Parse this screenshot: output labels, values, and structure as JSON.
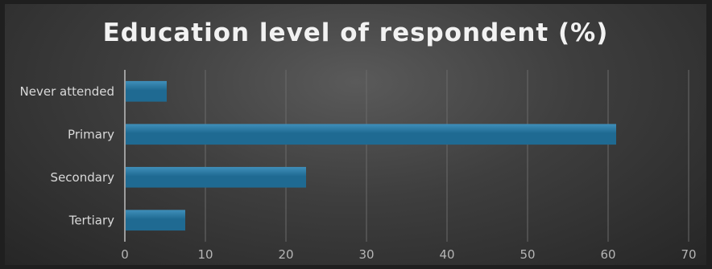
{
  "chart_data": {
    "type": "bar",
    "orientation": "horizontal",
    "title": "Education level of respondent (%)",
    "categories": [
      "Never attended",
      "Primary",
      "Secondary",
      "Tertiary"
    ],
    "values": [
      5.2,
      61.0,
      22.5,
      7.5
    ],
    "xlim": [
      0,
      70
    ],
    "xticks": [
      "0",
      "10",
      "20",
      "30",
      "40",
      "50",
      "60",
      "70"
    ],
    "grid": true,
    "legend": "none",
    "colors": {
      "bar": "#1f6a92",
      "bar_highlight": "#3f8fba",
      "grid": "#6a6a6a",
      "axis": "#bfbfbf"
    }
  }
}
